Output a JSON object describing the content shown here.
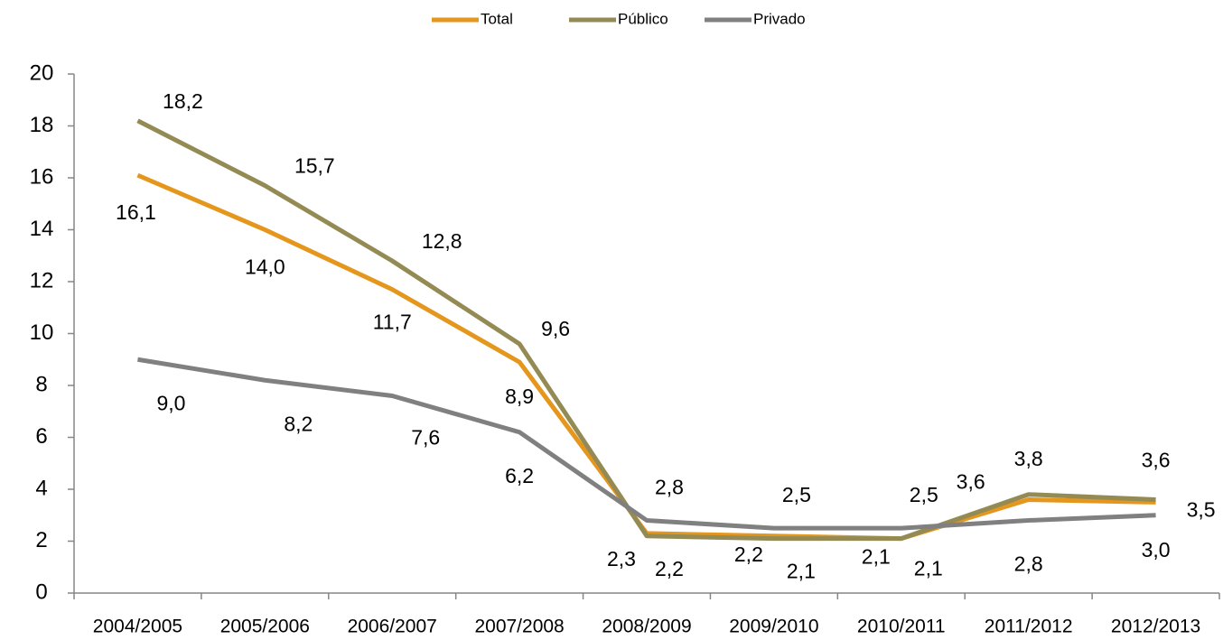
{
  "chart_data": {
    "type": "line",
    "categories": [
      "2004/2005",
      "2005/2006",
      "2006/2007",
      "2007/2008",
      "2008/2009",
      "2009/2010",
      "2010/2011",
      "2011/2012",
      "2012/2013"
    ],
    "series": [
      {
        "name": "Total",
        "color": "#e5961c",
        "values": [
          16.1,
          14.0,
          11.7,
          8.9,
          2.3,
          2.2,
          2.1,
          3.6,
          3.5
        ],
        "value_labels": [
          "16,1",
          "14,0",
          "11,7",
          "8,9",
          "2,3",
          "2,2",
          "2,1",
          "3,6",
          "3,5"
        ]
      },
      {
        "name": "Público",
        "color": "#948a54",
        "values": [
          18.2,
          15.7,
          12.8,
          9.6,
          2.2,
          2.1,
          2.1,
          3.8,
          3.6
        ],
        "value_labels": [
          "18,2",
          "15,7",
          "12,8",
          "9,6",
          "2,2",
          "2,1",
          "2,1",
          "3,8",
          "3,6"
        ]
      },
      {
        "name": "Privado",
        "color": "#808080",
        "values": [
          9.0,
          8.2,
          7.6,
          6.2,
          2.8,
          2.5,
          2.5,
          2.8,
          3.0
        ],
        "value_labels": [
          "9,0",
          "8,2",
          "7,6",
          "6,2",
          "2,8",
          "2,5",
          "2,5",
          "2,8",
          "3,0"
        ]
      }
    ],
    "ylim": [
      0,
      20
    ],
    "yticks": [
      0,
      2,
      4,
      6,
      8,
      10,
      12,
      14,
      16,
      18,
      20
    ],
    "legend": "top"
  }
}
